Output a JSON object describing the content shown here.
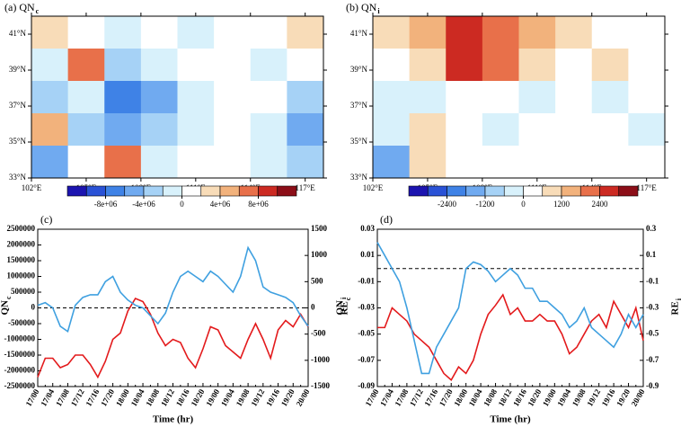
{
  "chart_data": [
    {
      "type": "heatmap",
      "title": "(a) QN",
      "title_subscript": "c",
      "xlim": [
        102,
        118
      ],
      "ylim": [
        33,
        42
      ],
      "xticks": [
        {
          "value": 102,
          "label": "102°E"
        },
        {
          "value": 105,
          "label": "105°E"
        },
        {
          "value": 108,
          "label": "108°E"
        },
        {
          "value": 111,
          "label": "111°E"
        },
        {
          "value": 114,
          "label": "114°E"
        },
        {
          "value": 117,
          "label": "117°E"
        }
      ],
      "yticks": [
        {
          "value": 33,
          "label": "33°N"
        },
        {
          "value": 35,
          "label": "35°N"
        },
        {
          "value": 37,
          "label": "37°N"
        },
        {
          "value": 39,
          "label": "39°N"
        },
        {
          "value": 41,
          "label": "41°N"
        }
      ],
      "z": [
        [
          2000000,
          0,
          -2000000,
          0,
          -2000000,
          0,
          0,
          2000000
        ],
        [
          -2000000,
          6000000,
          -4000000,
          -2000000,
          0,
          0,
          -2000000,
          0
        ],
        [
          -4000000,
          -2000000,
          -8000000,
          -6000000,
          -2000000,
          0,
          0,
          -4000000
        ],
        [
          4000000,
          -4000000,
          -6000000,
          -4000000,
          -2000000,
          0,
          -2000000,
          -6000000
        ],
        [
          -6000000,
          0,
          6000000,
          -2000000,
          0,
          0,
          -2000000,
          -4000000
        ]
      ],
      "colorbar": {
        "levels": [
          -10000000,
          -8000000,
          -6000000,
          -4000000,
          -2000000,
          0,
          2000000,
          4000000,
          6000000,
          8000000,
          10000000
        ],
        "colors": [
          "#1c14b0",
          "#2a52d6",
          "#3f82e6",
          "#70aaf0",
          "#a6d2f6",
          "#d8f1fb",
          "#ffffff",
          "#f8dcb8",
          "#f2b27c",
          "#e8704a",
          "#cc2a22",
          "#8c0e18"
        ],
        "ticks": [
          {
            "value": -8000000,
            "label": "-8e+06"
          },
          {
            "value": -4000000,
            "label": "-4e+06"
          },
          0,
          {
            "value": 4000000,
            "label": "4e+06"
          },
          {
            "value": 8000000,
            "label": "8e+06"
          }
        ]
      }
    },
    {
      "type": "heatmap",
      "title": "(b) QN",
      "title_subscript": "i",
      "xlim": [
        102,
        118
      ],
      "ylim": [
        33,
        42
      ],
      "xticks": [
        {
          "value": 102,
          "label": "102°E"
        },
        {
          "value": 105,
          "label": "105°E"
        },
        {
          "value": 108,
          "label": "108°E"
        },
        {
          "value": 111,
          "label": "111°E"
        },
        {
          "value": 114,
          "label": "114°E"
        },
        {
          "value": 117,
          "label": "117°E"
        }
      ],
      "yticks": [
        {
          "value": 33,
          "label": "33°N"
        },
        {
          "value": 35,
          "label": "35°N"
        },
        {
          "value": 37,
          "label": "37°N"
        },
        {
          "value": 39,
          "label": "39°N"
        },
        {
          "value": 41,
          "label": "41°N"
        }
      ],
      "z": [
        [
          600,
          1200,
          2400,
          1800,
          1200,
          600,
          0,
          0
        ],
        [
          0,
          600,
          2400,
          1800,
          600,
          0,
          600,
          0
        ],
        [
          -600,
          -600,
          0,
          0,
          -600,
          0,
          -600,
          0
        ],
        [
          -600,
          600,
          0,
          -600,
          0,
          0,
          0,
          -600
        ],
        [
          -1800,
          600,
          0,
          0,
          0,
          0,
          0,
          0
        ]
      ],
      "colorbar": {
        "levels": [
          -3000,
          -2400,
          -1800,
          -1200,
          -600,
          0,
          600,
          1200,
          1800,
          2400,
          3000
        ],
        "colors": [
          "#1c14b0",
          "#2a52d6",
          "#3f82e6",
          "#70aaf0",
          "#a6d2f6",
          "#d8f1fb",
          "#ffffff",
          "#f8dcb8",
          "#f2b27c",
          "#e8704a",
          "#cc2a22",
          "#8c0e18"
        ],
        "ticks": [
          -2400,
          -1200,
          0,
          1200,
          2400
        ]
      }
    },
    {
      "type": "line",
      "title": "(c)",
      "xlabel": "Time (hr)",
      "ylabel": "QN",
      "ylabel_subscript": "c",
      "y2label": "QN",
      "y2label_subscript": "i",
      "categories": [
        "17/00",
        null,
        "17/04",
        null,
        "17/08",
        null,
        "17/12",
        null,
        "17/16",
        null,
        "17/20",
        null,
        "18/00",
        null,
        "18/04",
        null,
        "18/08",
        null,
        "18/12",
        null,
        "18/16",
        null,
        "18/20",
        null,
        "19/00",
        null,
        "19/04",
        null,
        "19/08",
        null,
        "19/12",
        null,
        "19/16",
        null,
        "19/20",
        null,
        "20/00"
      ],
      "ylim": [
        -2500000,
        2500000
      ],
      "yticks": [
        -2500000,
        -2000000,
        -1500000,
        -1000000,
        -500000,
        0,
        500000,
        1000000,
        1500000,
        2000000,
        2500000
      ],
      "y2lim": [
        -1500,
        1500
      ],
      "y2ticks": [
        -1500,
        -1000,
        -500,
        0,
        500,
        1000,
        1500
      ],
      "hline": 0,
      "ycolor": "#e31a1c",
      "y2color": "#3fa0e0",
      "series": [
        {
          "color": "#e31a1c",
          "values": [
            -2200000,
            -1600000,
            -1600000,
            -1900000,
            -1800000,
            -1500000,
            -1500000,
            -1800000,
            -2200000,
            -1700000,
            -1000000,
            -800000,
            -100000,
            300000,
            200000,
            -200000,
            -800000,
            -1200000,
            -1000000,
            -1100000,
            -1600000,
            -1900000,
            -1300000,
            -600000,
            -700000,
            -1200000,
            -1400000,
            -1600000,
            -1000000,
            -500000,
            -1000000,
            -1600000,
            -700000,
            -400000,
            -600000,
            -200000,
            -600000
          ]
        },
        {
          "color": "#3fa0e0",
          "axis": "y2",
          "values": [
            50,
            100,
            0,
            -350,
            -450,
            50,
            200,
            250,
            250,
            500,
            600,
            300,
            150,
            50,
            0,
            -150,
            -300,
            -100,
            300,
            600,
            700,
            600,
            500,
            700,
            600,
            450,
            300,
            600,
            1150,
            900,
            400,
            300,
            250,
            200,
            100,
            -150,
            -350
          ]
        }
      ]
    },
    {
      "type": "line",
      "title": "(d)",
      "xlabel": "Time (hr)",
      "ylabel": "RE",
      "ylabel_subscript": "c",
      "y2label": "RE",
      "y2label_subscript": "i",
      "categories": [
        "17/00",
        null,
        "17/04",
        null,
        "17/08",
        null,
        "17/12",
        null,
        "17/16",
        null,
        "17/20",
        null,
        "18/00",
        null,
        "18/04",
        null,
        "18/08",
        null,
        "18/12",
        null,
        "18/16",
        null,
        "18/20",
        null,
        "19/00",
        null,
        "19/04",
        null,
        "19/08",
        null,
        "19/12",
        null,
        "19/16",
        null,
        "19/20",
        null,
        "20/00"
      ],
      "ylim": [
        -0.09,
        0.03
      ],
      "yticks": [
        -0.09,
        -0.07,
        -0.05,
        -0.03,
        -0.01,
        0.01,
        0.03
      ],
      "y2lim": [
        -0.9,
        0.3
      ],
      "y2ticks": [
        -0.9,
        -0.7,
        -0.5,
        -0.3,
        -0.1,
        0.1,
        0.3
      ],
      "hline": 0,
      "ycolor": "#e31a1c",
      "y2color": "#3fa0e0",
      "series": [
        {
          "color": "#e31a1c",
          "values": [
            -0.045,
            -0.045,
            -0.03,
            -0.035,
            -0.04,
            -0.05,
            -0.055,
            -0.06,
            -0.07,
            -0.08,
            -0.085,
            -0.075,
            -0.08,
            -0.07,
            -0.05,
            -0.035,
            -0.028,
            -0.02,
            -0.035,
            -0.03,
            -0.04,
            -0.04,
            -0.035,
            -0.04,
            -0.04,
            -0.05,
            -0.065,
            -0.06,
            -0.05,
            -0.04,
            -0.035,
            -0.045,
            -0.025,
            -0.035,
            -0.045,
            -0.03,
            -0.055
          ]
        },
        {
          "color": "#3fa0e0",
          "axis": "y2",
          "values": [
            0.2,
            0.1,
            0,
            -0.1,
            -0.3,
            -0.55,
            -0.8,
            -0.8,
            -0.6,
            -0.5,
            -0.4,
            -0.3,
            0,
            0.05,
            0.03,
            -0.02,
            -0.1,
            -0.05,
            0,
            -0.05,
            -0.15,
            -0.15,
            -0.25,
            -0.25,
            -0.3,
            -0.35,
            -0.45,
            -0.4,
            -0.3,
            -0.45,
            -0.5,
            -0.55,
            -0.6,
            -0.5,
            -0.35,
            -0.45,
            -0.35
          ]
        }
      ]
    }
  ]
}
